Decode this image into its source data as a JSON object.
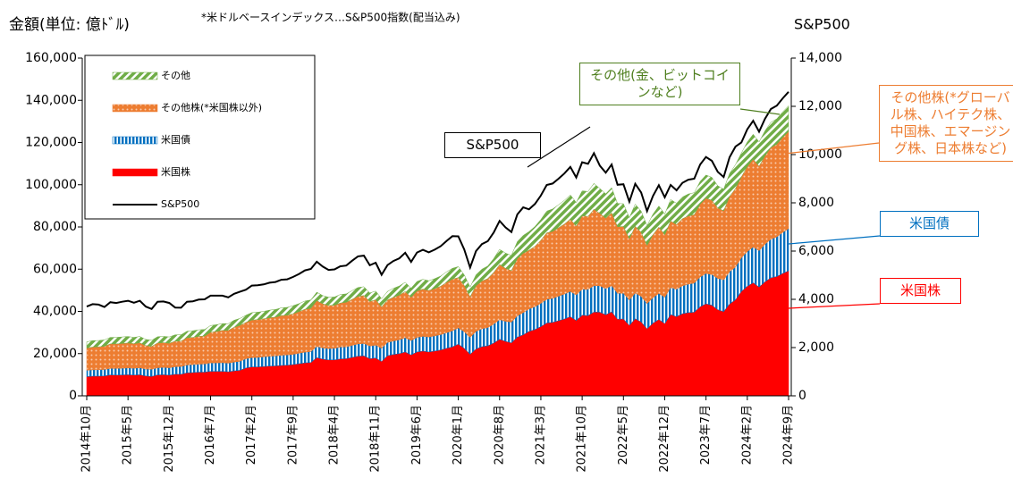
{
  "chart_data": {
    "type": "stacked-area-line",
    "title": "金額(単位: 億ﾄﾞﾙ)",
    "note": "*米ドルベースインデックス…S&P500指数(配当込み)",
    "y2_label": "S&P500",
    "categories": [
      "2014年10月",
      null,
      null,
      null,
      null,
      null,
      null,
      "2015年5月",
      null,
      null,
      null,
      null,
      null,
      null,
      "2015年12月",
      null,
      null,
      null,
      null,
      null,
      null,
      "2016年7月",
      null,
      null,
      null,
      null,
      null,
      null,
      "2017年2月",
      null,
      null,
      null,
      null,
      null,
      null,
      "2017年9月",
      null,
      null,
      null,
      null,
      null,
      null,
      "2018年4月",
      null,
      null,
      null,
      null,
      null,
      null,
      "2018年11月",
      null,
      null,
      null,
      null,
      null,
      null,
      "2019年6月",
      null,
      null,
      null,
      null,
      null,
      null,
      "2020年1月",
      null,
      null,
      null,
      null,
      null,
      null,
      "2020年8月",
      null,
      null,
      null,
      null,
      null,
      null,
      "2021年3月",
      null,
      null,
      null,
      null,
      null,
      null,
      "2021年10月",
      null,
      null,
      null,
      null,
      null,
      null,
      "2022年5月",
      null,
      null,
      null,
      null,
      null,
      null,
      "2022年12月",
      null,
      null,
      null,
      null,
      null,
      null,
      "2023年7月",
      null,
      null,
      null,
      null,
      null,
      null,
      "2024年2月",
      null,
      null,
      null,
      null,
      null,
      null,
      "2024年9月"
    ],
    "series": [
      {
        "name": "米国株",
        "color": "#ff0000",
        "values": [
          9100,
          9300,
          9300,
          9400,
          9900,
          9800,
          9900,
          10000,
          9800,
          10000,
          9400,
          9200,
          9900,
          10000,
          9800,
          10200,
          10200,
          10900,
          11000,
          11200,
          11200,
          11600,
          11600,
          11600,
          11400,
          11800,
          12100,
          13200,
          13700,
          13700,
          13900,
          14100,
          14200,
          14400,
          14500,
          14800,
          15200,
          15600,
          15800,
          18100,
          17400,
          17000,
          17000,
          17500,
          17600,
          18200,
          18800,
          18900,
          17600,
          17900,
          16300,
          19000,
          19600,
          20000,
          20800,
          19400,
          20800,
          21200,
          20800,
          21200,
          21700,
          22500,
          23200,
          24500,
          22500,
          19700,
          22200,
          23300,
          23700,
          25000,
          26800,
          25800,
          25100,
          27800,
          28900,
          30500,
          31400,
          32800,
          34500,
          34800,
          35600,
          36400,
          37500,
          35700,
          38200,
          38000,
          39700,
          39600,
          38400,
          39800,
          36300,
          36400,
          33400,
          36500,
          35000,
          31800,
          34400,
          36200,
          34200,
          38500,
          37500,
          38900,
          39400,
          39600,
          42200,
          43600,
          42900,
          40800,
          39900,
          43500,
          45500,
          49400,
          51900,
          53600,
          51500,
          54000,
          55900,
          56500,
          58000,
          59200
        ]
      },
      {
        "name": "米国債",
        "color": "#0070c0",
        "values": [
          3000,
          3000,
          3100,
          3100,
          3100,
          3200,
          3200,
          3200,
          3300,
          3300,
          3300,
          3400,
          3400,
          3500,
          3500,
          3600,
          3700,
          3700,
          3800,
          3800,
          3900,
          4000,
          4000,
          4100,
          4100,
          4200,
          4300,
          4400,
          4400,
          4500,
          4600,
          4600,
          4700,
          4800,
          4900,
          4900,
          5000,
          5100,
          5200,
          5300,
          5300,
          5400,
          5500,
          5600,
          5600,
          5700,
          5800,
          5900,
          6000,
          6100,
          6200,
          6300,
          6400,
          6600,
          6700,
          6800,
          6900,
          7000,
          7100,
          7200,
          7300,
          7400,
          7600,
          7700,
          7900,
          8000,
          8300,
          8500,
          8700,
          9000,
          9300,
          9500,
          9800,
          10100,
          10500,
          10700,
          10800,
          11000,
          11200,
          11400,
          11600,
          11800,
          12000,
          12100,
          12300,
          12400,
          12500,
          12500,
          12400,
          12400,
          12300,
          12200,
          12000,
          12200,
          12100,
          11900,
          12100,
          12300,
          12500,
          12800,
          13000,
          13200,
          13500,
          13800,
          14100,
          14400,
          14600,
          14800,
          15000,
          15300,
          15500,
          16000,
          16400,
          16900,
          17300,
          17800,
          18300,
          18800,
          19400,
          20000
        ]
      },
      {
        "name": "その他株(*米国株以外)",
        "color": "#ed7d31",
        "values": [
          10500,
          10800,
          10800,
          11000,
          11600,
          11600,
          11700,
          11800,
          11600,
          11800,
          11100,
          10800,
          11700,
          11700,
          11600,
          12100,
          12000,
          12900,
          12900,
          13200,
          13200,
          14500,
          14900,
          15300,
          15500,
          16500,
          17000,
          17200,
          17800,
          17900,
          18000,
          18300,
          18400,
          18800,
          18800,
          19200,
          19700,
          20300,
          20500,
          21700,
          20900,
          20400,
          20400,
          20900,
          21100,
          21800,
          22500,
          22700,
          21100,
          21500,
          19600,
          20100,
          20700,
          21100,
          21900,
          20500,
          22000,
          22400,
          22000,
          22400,
          22900,
          23800,
          24500,
          23800,
          21900,
          19200,
          21600,
          22600,
          23100,
          24400,
          26100,
          25100,
          24400,
          27100,
          28100,
          27800,
          28600,
          29900,
          31500,
          31700,
          32400,
          33200,
          34200,
          32600,
          34800,
          34600,
          36200,
          34300,
          33300,
          34500,
          31500,
          31600,
          29000,
          31600,
          30300,
          27600,
          29800,
          31400,
          29600,
          31500,
          30700,
          31800,
          32300,
          32400,
          34500,
          35600,
          35100,
          33400,
          32700,
          35600,
          37200,
          38300,
          40300,
          41600,
          40000,
          41900,
          43400,
          43900,
          45000,
          46000
        ]
      },
      {
        "name": "その他",
        "color": "#70ad47",
        "values": [
          3000,
          3000,
          3000,
          3000,
          3100,
          3100,
          3100,
          3100,
          3000,
          3000,
          2900,
          2900,
          3000,
          3000,
          3000,
          3000,
          3000,
          3100,
          3100,
          3100,
          3100,
          3200,
          3200,
          3200,
          3200,
          3300,
          3300,
          3400,
          3500,
          3500,
          3500,
          3600,
          3600,
          3700,
          3700,
          3800,
          3800,
          3900,
          3900,
          4000,
          3900,
          3900,
          3900,
          4000,
          4000,
          4100,
          4200,
          4200,
          4000,
          4100,
          3900,
          4100,
          4200,
          4300,
          4400,
          4300,
          4500,
          4600,
          4600,
          4700,
          4800,
          5000,
          5100,
          5200,
          5000,
          4600,
          5200,
          5600,
          6000,
          6600,
          7200,
          7200,
          7200,
          8000,
          8500,
          8800,
          9400,
          9800,
          10300,
          10600,
          10900,
          11200,
          11500,
          11200,
          11800,
          11800,
          12200,
          11800,
          11600,
          11900,
          11000,
          10800,
          10000,
          10500,
          10100,
          9300,
          9700,
          10000,
          9800,
          10200,
          10000,
          10300,
          10400,
          10400,
          10800,
          11000,
          10900,
          10500,
          10300,
          10900,
          11300,
          11300,
          11600,
          11800,
          11500,
          11800,
          12000,
          12000,
          12100,
          12200
        ]
      },
      {
        "name": "S&P500",
        "color": "#000000",
        "axis": "y2",
        "values": [
          3700,
          3800,
          3780,
          3680,
          3880,
          3850,
          3900,
          3940,
          3860,
          3940,
          3700,
          3600,
          3900,
          3910,
          3850,
          3660,
          3650,
          3900,
          3920,
          3990,
          4000,
          4150,
          4150,
          4150,
          4080,
          4230,
          4320,
          4400,
          4570,
          4580,
          4620,
          4690,
          4720,
          4810,
          4830,
          4930,
          5050,
          5200,
          5260,
          5560,
          5360,
          5220,
          5240,
          5370,
          5400,
          5600,
          5780,
          5810,
          5410,
          5520,
          5020,
          5420,
          5590,
          5700,
          5930,
          5550,
          5940,
          6050,
          5950,
          6060,
          6200,
          6420,
          6620,
          6610,
          6070,
          5320,
          6000,
          6290,
          6410,
          6770,
          7250,
          6980,
          6790,
          7520,
          7810,
          7730,
          7950,
          8300,
          8740,
          8800,
          9000,
          9220,
          9490,
          9050,
          9680,
          9620,
          10060,
          9540,
          9250,
          9590,
          8750,
          8770,
          8050,
          8790,
          8430,
          7660,
          8280,
          8730,
          8230,
          8740,
          8520,
          8830,
          8960,
          9000,
          9590,
          9900,
          9740,
          9280,
          9070,
          9890,
          10330,
          10500,
          11050,
          11400,
          10950,
          11480,
          11890,
          12030,
          12330,
          12600
        ]
      }
    ],
    "ylim": [
      0,
      160000
    ],
    "yticks": [
      0,
      {
        "value": 20000,
        "label": "20,000"
      },
      {
        "value": 40000,
        "label": "40,000"
      },
      {
        "value": 60000,
        "label": "60,000"
      },
      {
        "value": 80000,
        "label": "80,000"
      },
      {
        "value": 100000,
        "label": "100,000"
      },
      {
        "value": 120000,
        "label": "120,000"
      },
      {
        "value": 140000,
        "label": "140,000"
      },
      {
        "value": 160000,
        "label": "160,000"
      }
    ],
    "y2lim": [
      0,
      14000
    ],
    "y2ticks": [
      0,
      {
        "value": 2000,
        "label": "2,000"
      },
      {
        "value": 4000,
        "label": "4,000"
      },
      {
        "value": 6000,
        "label": "6,000"
      },
      {
        "value": 8000,
        "label": "8,000"
      },
      {
        "value": 10000,
        "label": "10,000"
      },
      {
        "value": 12000,
        "label": "12,000"
      },
      {
        "value": 14000,
        "label": "14,000"
      }
    ],
    "grid": false,
    "legend": "upper left",
    "annotations": [
      {
        "text": "S&P500",
        "color": "#000000"
      },
      {
        "text": "その他(金、ビットコインなど)",
        "color": "#4f7f1f"
      },
      {
        "text": "その他株(*グローバル株、ハイテク株、中国株、エマージング株、日本株など)",
        "color": "#ed7d31"
      },
      {
        "text": "米国債",
        "color": "#0070c0"
      },
      {
        "text": "米国株",
        "color": "#ff0000"
      }
    ]
  }
}
